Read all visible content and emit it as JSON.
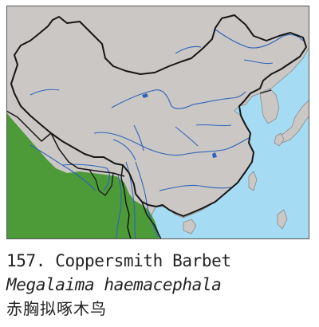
{
  "species": {
    "number_label": "157. Coppersmith Barbet",
    "scientific_name": "Megalaima haemacephala",
    "chinese_name": "赤胸拟啄木鸟"
  },
  "colors": {
    "sea": "#a5dcf4",
    "land": "#cbc7c4",
    "range": "#4c9a38",
    "border": "#161616",
    "river": "#2f63b8",
    "frame": "#555555"
  }
}
